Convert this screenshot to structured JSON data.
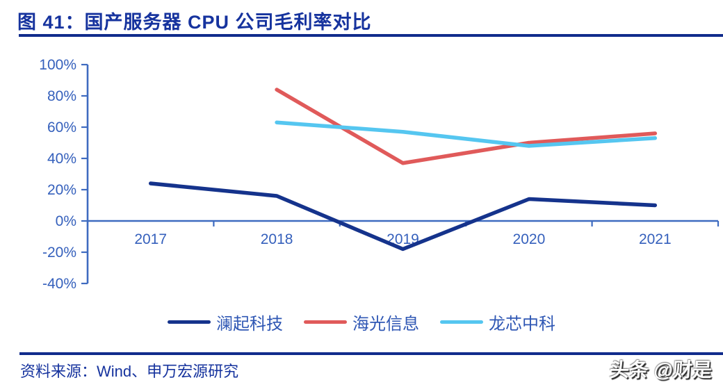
{
  "header": {
    "title": "图 41：国产服务器 CPU 公司毛利率对比"
  },
  "footer": {
    "source": "资料来源：Wind、申万宏源研究",
    "watermark": "头条 @财是"
  },
  "colors": {
    "title_navy": "#16339E",
    "rule_navy": "#112C8C",
    "axis_blue": "#3E6BC0",
    "label_blue": "#3560BC",
    "legend_blue": "#2F57B4"
  },
  "chart_data": {
    "type": "line",
    "title": "国产服务器 CPU 公司毛利率对比",
    "unit": "%",
    "categories": [
      "2017",
      "2018",
      "2019",
      "2020",
      "2021"
    ],
    "series": [
      {
        "name": "澜起科技",
        "color": "#15338C",
        "values": [
          24,
          16,
          -18,
          14,
          10
        ]
      },
      {
        "name": "海光信息",
        "color": "#E05A5A",
        "values": [
          null,
          84,
          37,
          50,
          56
        ]
      },
      {
        "name": "龙芯中科",
        "color": "#55C6F0",
        "values": [
          null,
          63,
          57,
          48,
          53
        ]
      }
    ],
    "ylim": [
      -40,
      100
    ],
    "y_ticks": [
      {
        "value": 100,
        "label": "100%"
      },
      {
        "value": 80,
        "label": "80%"
      },
      {
        "value": 60,
        "label": "60%"
      },
      {
        "value": 40,
        "label": "40%"
      },
      {
        "value": 20,
        "label": "20%"
      },
      {
        "value": 0,
        "label": "0%"
      },
      {
        "value": -20,
        "label": "-20%"
      },
      {
        "value": -40,
        "label": "-40%"
      }
    ],
    "grid": false,
    "legend_position": "bottom"
  }
}
